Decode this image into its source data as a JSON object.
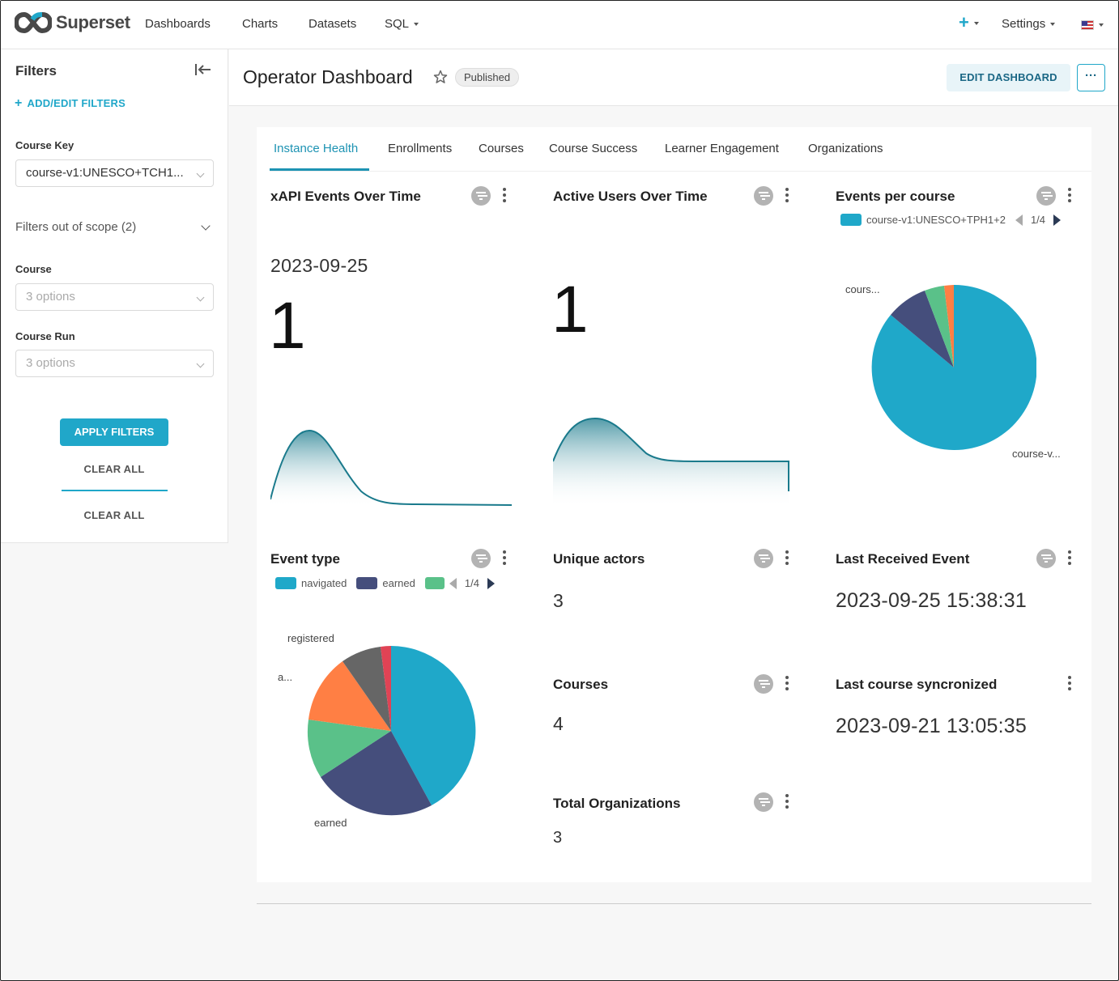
{
  "navbar": {
    "brand": "Superset",
    "items": [
      "Dashboards",
      "Charts",
      "Datasets",
      "SQL"
    ],
    "settings_label": "Settings",
    "plus_icon": "+",
    "accent_color": "#20a7c9"
  },
  "sidebar": {
    "title": "Filters",
    "add_edit": "ADD/EDIT FILTERS",
    "course_key_label": "Course Key",
    "course_key_value": "course-v1:UNESCO+TCH1...",
    "out_of_scope": "Filters out of scope (2)",
    "course_label": "Course",
    "course_placeholder": "3 options",
    "course_run_label": "Course Run",
    "course_run_placeholder": "3 options",
    "apply": "APPLY FILTERS",
    "clear_all": "CLEAR ALL",
    "clear_all_2": "CLEAR ALL"
  },
  "header": {
    "title": "Operator Dashboard",
    "badge": "Published",
    "edit_button": "EDIT DASHBOARD",
    "more_button": "···"
  },
  "tabs": [
    "Instance Health",
    "Enrollments",
    "Courses",
    "Course Success",
    "Learner Engagement",
    "Organizations"
  ],
  "charts": {
    "xapi": {
      "title": "xAPI Events Over Time",
      "date": "2023-09-25",
      "value": "1"
    },
    "active_users": {
      "title": "Active Users Over Time",
      "value": "1"
    },
    "events_per_course": {
      "title": "Events per course",
      "legend_label": "course-v1:UNESCO+TPH1+2",
      "pager": "1/4",
      "label_top": "cours...",
      "label_bottom": "course-v..."
    },
    "event_type": {
      "title": "Event type",
      "legend": [
        "navigated",
        "earned"
      ],
      "pager": "1/4",
      "label_registered": "registered",
      "label_a": "a...",
      "label_earned": "earned"
    },
    "unique_actors": {
      "title": "Unique actors",
      "value": "3"
    },
    "last_event": {
      "title": "Last Received Event",
      "value": "2023-09-25 15:38:31"
    },
    "courses": {
      "title": "Courses",
      "value": "4"
    },
    "last_sync": {
      "title": "Last course syncronized",
      "value": "2023-09-21 13:05:35"
    },
    "total_orgs": {
      "title": "Total Organizations",
      "value": "3"
    }
  },
  "colors": {
    "teal": "#1fa8c9",
    "navy": "#454e7c",
    "green": "#5ac189",
    "orange": "#ff7f44",
    "gray": "#666666",
    "red": "#e04355"
  }
}
